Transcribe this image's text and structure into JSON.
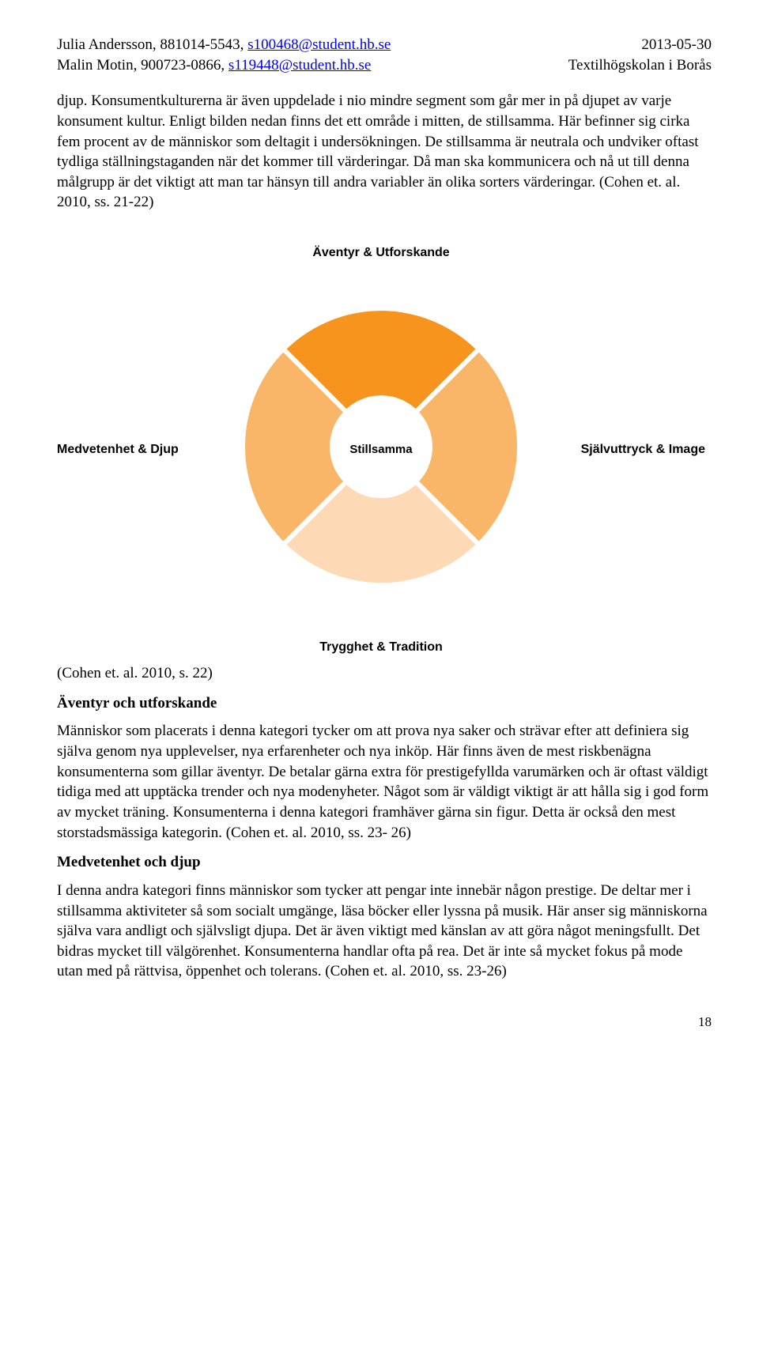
{
  "header": {
    "author1": "Julia Andersson, 881014-5543, ",
    "email1": "s100468@student.hb.se",
    "author2": "Malin Motin, 900723-0866, ",
    "email2": "s119448@student.hb.se",
    "date": "2013-05-30",
    "institution": "Textilhögskolan i Borås"
  },
  "body": {
    "p1": "djup. Konsumentkulturerna är även uppdelade i nio mindre segment som går mer in på djupet av varje konsument kultur. Enligt bilden nedan finns det ett område i mitten, de stillsamma. Här befinner sig cirka fem procent av de människor som deltagit i undersökningen. De stillsamma är neutrala och undviker oftast tydliga ställningstaganden när det kommer till värderingar. Då man ska kommunicera och nå ut till denna målgrupp är det viktigt att man tar hänsyn till andra variabler än olika sorters värderingar. (Cohen et. al. 2010, ss. 21-22)",
    "caption": "(Cohen et. al. 2010, s. 22)",
    "h_a": "Äventyr och utforskande",
    "p2": "Människor som placerats i denna kategori tycker om att prova nya saker och strävar efter att definiera sig själva genom nya upplevelser, nya erfarenheter och nya inköp. Här finns även de mest riskbenägna konsumenterna som gillar äventyr. De betalar gärna extra för prestigefyllda varumärken och är oftast väldigt tidiga med att upptäcka trender och nya modenyheter. Något som är väldigt viktigt är att hålla sig i god form av mycket träning. Konsumenterna i denna kategori framhäver gärna sin figur. Detta är också den mest storstadsmässiga kategorin. (Cohen et. al. 2010, ss. 23- 26)",
    "h_b": "Medvetenhet och djup",
    "p3": "I denna andra kategori finns människor som tycker att pengar inte innebär någon prestige. De deltar mer i stillsamma aktiviteter så som socialt umgänge, läsa böcker eller lyssna på musik. Här anser sig människorna själva vara andligt och självsligt djupa. Det är även viktigt med känslan av att göra något meningsfullt. Det bidras mycket till välgörenhet. Konsumenterna handlar ofta på rea. Det är inte så mycket fokus på mode utan med på rättvisa, öppenhet och tolerans. (Cohen et. al. 2010, ss. 23-26)"
  },
  "chart": {
    "type": "donut",
    "labels": {
      "top": "Äventyr & Utforskande",
      "right": "Självuttryck & Image",
      "bottom": "Trygghet & Tradition",
      "left": "Medvetenhet & Djup",
      "center": "Stillsamma"
    },
    "segments": [
      {
        "start_deg": -45,
        "end_deg": 45,
        "color": "#f7941e"
      },
      {
        "start_deg": 45,
        "end_deg": 135,
        "color": "#f9b668"
      },
      {
        "start_deg": 135,
        "end_deg": 225,
        "color": "#fddab5"
      },
      {
        "start_deg": 225,
        "end_deg": 315,
        "color": "#f9b668"
      }
    ],
    "outer_radius": 175,
    "inner_radius": 62,
    "gap_stroke": "#ffffff",
    "gap_width": 6,
    "background_color": "#ffffff",
    "label_fontsize": 16,
    "label_font": "Arial",
    "label_weight": "bold"
  },
  "pagenum": "18"
}
